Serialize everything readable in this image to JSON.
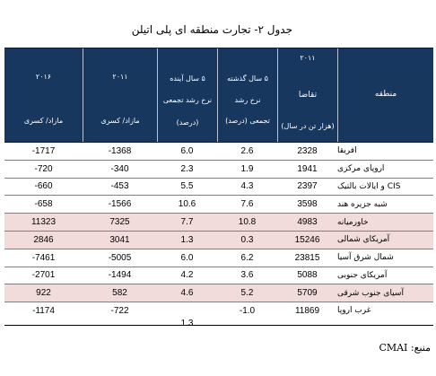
{
  "title": "جدول ۲- تجارت منطقه ای پلی اتیلن",
  "header": {
    "region": "منطقه",
    "demand_year": "۲۰۱۱",
    "demand_label": "تقاضا",
    "demand_unit": "(هزار تن در سال)",
    "past5_line1": "۵ سال گذشته",
    "past5_line2": "نرخ رشد",
    "past5_line3": "تجمعی (درصد)",
    "next5_line1": "۵ سال آینده",
    "next5_line2": "نرخ رشد تجمعی",
    "next5_line3": "(درصد)",
    "y2011_year": "۲۰۱۱",
    "y2011_label": "مازاد/ کسری",
    "y2016_year": "۲۰۱۶",
    "y2016_label": "مازاد/ کسری"
  },
  "rows": [
    {
      "region": "افریقا",
      "demand": "2328",
      "past5": "2.6",
      "next5": "6.0",
      "s2011": "-1368",
      "s2016": "-1717",
      "highlight": false
    },
    {
      "region": "اروپای مرکزی",
      "demand": "1941",
      "past5": "1.9",
      "next5": "2.3",
      "s2011": "-340",
      "s2016": "-720",
      "highlight": false
    },
    {
      "region": "CIS و ایالات بالتیک",
      "demand": "2397",
      "past5": "4.3",
      "next5": "5.5",
      "s2011": "-453",
      "s2016": "-660",
      "highlight": false
    },
    {
      "region": "شبه جزیره هند",
      "demand": "3598",
      "past5": "7.6",
      "next5": "10.6",
      "s2011": "-1566",
      "s2016": "-658",
      "highlight": false
    },
    {
      "region": "خاورمیانه",
      "demand": "4983",
      "past5": "10.8",
      "next5": "7.7",
      "s2011": "7325",
      "s2016": "11323",
      "highlight": true
    },
    {
      "region": "آمریکای شمالی",
      "demand": "15246",
      "past5": "0.3",
      "next5": "1.3",
      "s2011": "3041",
      "s2016": "2846",
      "highlight": true
    },
    {
      "region": "شمال شرق آسیا",
      "demand": "23815",
      "past5": "6.2",
      "next5": "6.0",
      "s2011": "-5005",
      "s2016": "-7461",
      "highlight": false
    },
    {
      "region": "آمریکای جنوبی",
      "demand": "5088",
      "past5": "3.6",
      "next5": "4.2",
      "s2011": "-1494",
      "s2016": "-2701",
      "highlight": false
    },
    {
      "region": "آسیای جنوب شرقی",
      "demand": "5709",
      "past5": "5.2",
      "next5": "4.6",
      "s2011": "582",
      "s2016": "922",
      "highlight": true
    },
    {
      "region": "غرب اروپا",
      "demand": "11869",
      "past5": "-1.0",
      "next5": "1.3",
      "s2011": "-722",
      "s2016": "-1174",
      "highlight": false
    }
  ],
  "source": "منبع: CMAI"
}
